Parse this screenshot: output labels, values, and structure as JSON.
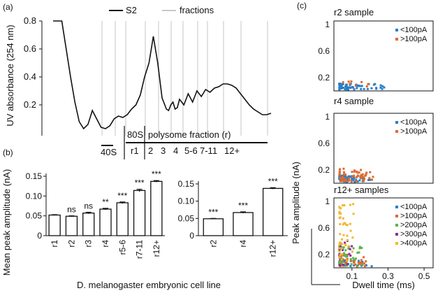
{
  "panels": {
    "a": "(a)",
    "b": "(b)",
    "c": "(c)"
  },
  "chart_data": [
    {
      "type": "line",
      "panel": "a",
      "ylabel": "UV absorbance (254 nm)",
      "yticks": [
        "0.8",
        "0.6",
        "0.4",
        "0.2"
      ],
      "legend": [
        {
          "name": "S2",
          "color": "#111111"
        },
        {
          "name": "fractions",
          "color": "#c8c8c8"
        }
      ],
      "fraction_count": 12,
      "trace_x": [
        0,
        4,
        5,
        8,
        10,
        12,
        14,
        16,
        18,
        20,
        22,
        24,
        26,
        28,
        30,
        32,
        34,
        36,
        38,
        40,
        42,
        44,
        46,
        48,
        50,
        52,
        53,
        54,
        55,
        56,
        57,
        58,
        60,
        62,
        64,
        66,
        68,
        70,
        72,
        74,
        76,
        78,
        80,
        82,
        84,
        86,
        88,
        90,
        92,
        94,
        96,
        98,
        100
      ],
      "trace_y": [
        0.8,
        0.8,
        0.7,
        0.4,
        0.22,
        0.08,
        0.03,
        0.06,
        0.16,
        0.1,
        0.04,
        0.03,
        0.05,
        0.1,
        0.12,
        0.11,
        0.13,
        0.17,
        0.2,
        0.27,
        0.4,
        0.5,
        0.69,
        0.5,
        0.25,
        0.17,
        0.16,
        0.2,
        0.22,
        0.17,
        0.18,
        0.24,
        0.2,
        0.28,
        0.22,
        0.3,
        0.26,
        0.31,
        0.29,
        0.32,
        0.33,
        0.35,
        0.35,
        0.34,
        0.32,
        0.28,
        0.24,
        0.2,
        0.17,
        0.15,
        0.13,
        0.13,
        0.14
      ],
      "annotations": {
        "s40": "40S",
        "s80": "80S",
        "r1": "r1",
        "polysome": "polysome fraction (r)",
        "fractions": [
          "2",
          "3",
          "4",
          "5-6",
          "7-11",
          "12+"
        ]
      }
    },
    {
      "type": "bar",
      "panel": "b-left",
      "ylabel": "Mean peak amplitude (nA)",
      "ylim": [
        0,
        0.15
      ],
      "yticks": [
        "0",
        "0.05",
        "0.10",
        "0.15"
      ],
      "categories": [
        "r1",
        "r2",
        "r3",
        "r4",
        "r5-6",
        "r7-11",
        "r12+"
      ],
      "values": [
        0.052,
        0.049,
        0.057,
        0.067,
        0.083,
        0.114,
        0.137
      ],
      "errors": [
        0.001,
        0.001,
        0.002,
        0.002,
        0.002,
        0.003,
        0.002
      ],
      "significance": [
        "",
        "ns",
        "ns",
        "**",
        "***",
        "***",
        "***"
      ]
    },
    {
      "type": "bar",
      "panel": "b-right",
      "ylim": [
        0,
        0.15
      ],
      "yticks": [
        "0",
        "0.05",
        "0.10",
        "0.15"
      ],
      "categories": [
        "r2",
        "r4",
        "r12+"
      ],
      "values": [
        0.049,
        0.067,
        0.137
      ],
      "errors": [
        0.001,
        0.002,
        0.002
      ],
      "significance": [
        "***",
        "***",
        "***"
      ],
      "xlabel": "D. melanogaster embryonic cell line"
    },
    {
      "type": "scatter",
      "panel": "c",
      "ylabel": "Peak amplitude (nA)",
      "xlabel": "Dwell time (ms)",
      "xticks": [
        "0.1",
        "0.3",
        "0.5"
      ],
      "subplots": [
        {
          "title": "r2 sample",
          "yticks": [
            "1",
            "0.6",
            "0.2"
          ],
          "legend": [
            {
              "name": "<100pA",
              "color": "#2a7fc9"
            },
            {
              "name": ">100pA",
              "color": "#e06a2c"
            }
          ]
        },
        {
          "title": "r4 sample",
          "yticks": [
            "1",
            "0.6",
            "0.2"
          ],
          "legend": [
            {
              "name": "<100pA",
              "color": "#2a7fc9"
            },
            {
              "name": ">100pA",
              "color": "#e06a2c"
            }
          ]
        },
        {
          "title": "r12+ samples",
          "yticks": [
            "1",
            "0.6",
            "0.2"
          ],
          "legend": [
            {
              "name": "<100pA",
              "color": "#2a7fc9"
            },
            {
              "name": ">100pA",
              "color": "#e06a2c"
            },
            {
              "name": ">200pA",
              "color": "#5ab44a"
            },
            {
              "name": ">300pA",
              "color": "#8a2ea0"
            },
            {
              "name": ">400pA",
              "color": "#f2b82e"
            }
          ]
        }
      ]
    }
  ]
}
